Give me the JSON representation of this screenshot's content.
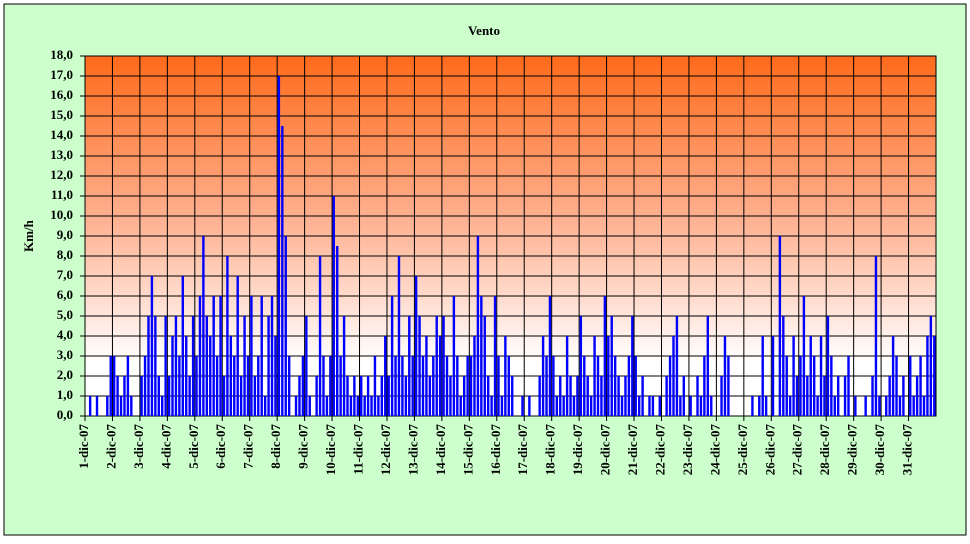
{
  "chart_data": {
    "type": "bar",
    "title": "Vento",
    "y_label": "Km/h",
    "color": "#0000ff",
    "grid": true,
    "ylim": [
      0,
      18
    ],
    "yticks": [
      {
        "value": 0,
        "label": "0,0"
      },
      {
        "value": 1,
        "label": "1,0"
      },
      {
        "value": 2,
        "label": "2,0"
      },
      {
        "value": 3,
        "label": "3,0"
      },
      {
        "value": 4,
        "label": "4,0"
      },
      {
        "value": 5,
        "label": "5,0"
      },
      {
        "value": 6,
        "label": "6,0"
      },
      {
        "value": 7,
        "label": "7,0"
      },
      {
        "value": 8,
        "label": "8,0"
      },
      {
        "value": 9,
        "label": "9,0"
      },
      {
        "value": 10,
        "label": "10,0"
      },
      {
        "value": 11,
        "label": "11,0"
      },
      {
        "value": 12,
        "label": "12,0"
      },
      {
        "value": 13,
        "label": "13,0"
      },
      {
        "value": 14,
        "label": "14,0"
      },
      {
        "value": 15,
        "label": "15,0"
      },
      {
        "value": 16,
        "label": "16,0"
      },
      {
        "value": 17,
        "label": "17,0"
      },
      {
        "value": 18,
        "label": "18,0"
      }
    ],
    "categories": [
      "1-dic-07",
      null,
      null,
      null,
      null,
      null,
      null,
      null,
      "2-dic-07",
      null,
      null,
      null,
      null,
      null,
      null,
      null,
      "3-dic-07",
      null,
      null,
      null,
      null,
      null,
      null,
      null,
      "4-dic-07",
      null,
      null,
      null,
      null,
      null,
      null,
      null,
      "5-dic-07",
      null,
      null,
      null,
      null,
      null,
      null,
      null,
      "6-dic-07",
      null,
      null,
      null,
      null,
      null,
      null,
      null,
      "7-dic-07",
      null,
      null,
      null,
      null,
      null,
      null,
      null,
      "8-dic-07",
      null,
      null,
      null,
      null,
      null,
      null,
      null,
      "9-dic-07",
      null,
      null,
      null,
      null,
      null,
      null,
      null,
      "10-dic-07",
      null,
      null,
      null,
      null,
      null,
      null,
      null,
      "11-dic-07",
      null,
      null,
      null,
      null,
      null,
      null,
      null,
      "12-dic-07",
      null,
      null,
      null,
      null,
      null,
      null,
      null,
      "13-dic-07",
      null,
      null,
      null,
      null,
      null,
      null,
      null,
      "14-dic-07",
      null,
      null,
      null,
      null,
      null,
      null,
      null,
      "15-dic-07",
      null,
      null,
      null,
      null,
      null,
      null,
      null,
      "16-dic-07",
      null,
      null,
      null,
      null,
      null,
      null,
      null,
      "17-dic-07",
      null,
      null,
      null,
      null,
      null,
      null,
      null,
      "18-dic-07",
      null,
      null,
      null,
      null,
      null,
      null,
      null,
      "19-dic-07",
      null,
      null,
      null,
      null,
      null,
      null,
      null,
      "20-dic-07",
      null,
      null,
      null,
      null,
      null,
      null,
      null,
      "21-dic-07",
      null,
      null,
      null,
      null,
      null,
      null,
      null,
      "22-dic-07",
      null,
      null,
      null,
      null,
      null,
      null,
      null,
      "23-dic-07",
      null,
      null,
      null,
      null,
      null,
      null,
      null,
      "24-dic-07",
      null,
      null,
      null,
      null,
      null,
      null,
      null,
      "25-dic-07",
      null,
      null,
      null,
      null,
      null,
      null,
      null,
      "26-dic-07",
      null,
      null,
      null,
      null,
      null,
      null,
      null,
      "27-dic-07",
      null,
      null,
      null,
      null,
      null,
      null,
      null,
      "28-dic-07",
      null,
      null,
      null,
      null,
      null,
      null,
      null,
      "29-dic-07",
      null,
      null,
      null,
      null,
      null,
      null,
      null,
      "30-dic-07",
      null,
      null,
      null,
      null,
      null,
      null,
      null,
      "31-dic-07",
      null,
      null,
      null,
      null,
      null,
      null,
      null
    ],
    "values": [
      0,
      1,
      0,
      1,
      0,
      0,
      1,
      3,
      3,
      2,
      1,
      2,
      3,
      1,
      0,
      0,
      2,
      3,
      5,
      7,
      5,
      2,
      1,
      5,
      2,
      4,
      5,
      3,
      7,
      4,
      2,
      5,
      3,
      6,
      9,
      5,
      4,
      6,
      3,
      6,
      2,
      8,
      4,
      3,
      7,
      2,
      5,
      3,
      6,
      2,
      3,
      6,
      1,
      5,
      6,
      4,
      17,
      14.5,
      9,
      3,
      0,
      1,
      2,
      3,
      5,
      1,
      0,
      2,
      8,
      3,
      1,
      3,
      11,
      8.5,
      3,
      5,
      2,
      1,
      2,
      1,
      2,
      1,
      2,
      1,
      3,
      1,
      2,
      4,
      2,
      6,
      3,
      8,
      3,
      2,
      5,
      3,
      7,
      5,
      3,
      4,
      2,
      3,
      5,
      4,
      5,
      3,
      2,
      6,
      3,
      1,
      2,
      3,
      3,
      4,
      9,
      6,
      5,
      2,
      1,
      6,
      3,
      1,
      4,
      3,
      2,
      0,
      0,
      1,
      0,
      1,
      0,
      0,
      2,
      4,
      3,
      6,
      3,
      1,
      2,
      1,
      4,
      2,
      1,
      2,
      5,
      3,
      2,
      1,
      4,
      3,
      2,
      6,
      4,
      5,
      3,
      2,
      1,
      2,
      3,
      5,
      3,
      1,
      2,
      0,
      1,
      1,
      0,
      1,
      0,
      2,
      3,
      4,
      5,
      1,
      2,
      0,
      1,
      0,
      2,
      1,
      3,
      5,
      1,
      0,
      0,
      2,
      4,
      3,
      0,
      0,
      0,
      0,
      0,
      0,
      1,
      0,
      1,
      4,
      1,
      0,
      4,
      0,
      9,
      5,
      3,
      1,
      4,
      2,
      3,
      6,
      2,
      4,
      3,
      1,
      4,
      2,
      5,
      3,
      1,
      2,
      0,
      2,
      3,
      0,
      1,
      0,
      0,
      1,
      0,
      2,
      8,
      1,
      0,
      1,
      2,
      4,
      3,
      1,
      2,
      0,
      3,
      1,
      2,
      3,
      1,
      4,
      5,
      4
    ]
  }
}
